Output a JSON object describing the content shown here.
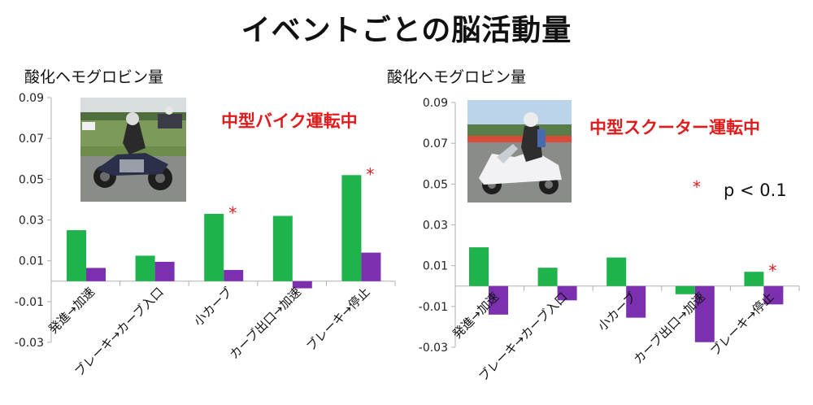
{
  "title": "イベントごとの脳活動量",
  "colors": {
    "series_a": "#1fb34c",
    "series_b": "#7b30b0",
    "accent": "#e01b1b",
    "axis": "#b0b0b0"
  },
  "legend_note": {
    "star": "*",
    "text": "p < 0.1"
  },
  "chart_data": [
    {
      "type": "bar",
      "title": "中型バイク運転中",
      "ylabel": "酸化ヘモグロビン量",
      "xlabel": "",
      "ylim": [
        -0.03,
        0.09
      ],
      "yticks": [
        "0.09",
        "0.07",
        "0.05",
        "0.03",
        "0.01",
        "-0.01",
        "-0.03"
      ],
      "categories": [
        "発進→加速",
        "ブレーキ→カーブ入口",
        "小カーブ",
        "カーブ出口→加速",
        "ブレーキ→停止"
      ],
      "series": [
        {
          "values": [
            0.025,
            0.0125,
            0.033,
            0.032,
            0.052
          ]
        },
        {
          "values": [
            0.0065,
            0.0095,
            0.0055,
            -0.0035,
            0.014
          ]
        }
      ],
      "annotations": [
        {
          "category": 2,
          "text": "*"
        },
        {
          "category": 4,
          "text": "*"
        }
      ],
      "photo": "motorcycle-rider-photo"
    },
    {
      "type": "bar",
      "title": "中型スクーター運転中",
      "ylabel": "酸化ヘモグロビン量",
      "xlabel": "",
      "ylim": [
        -0.03,
        0.09
      ],
      "yticks": [
        "0.09",
        "0.07",
        "0.05",
        "0.03",
        "0.01",
        "-0.01",
        "-0.03"
      ],
      "categories": [
        "発進→加速",
        "ブレーキ→カーブ入口",
        "小カーブ",
        "カーブ出口→加速",
        "ブレーキ→停止"
      ],
      "series": [
        {
          "values": [
            0.019,
            0.009,
            0.014,
            -0.004,
            0.007
          ]
        },
        {
          "values": [
            -0.014,
            -0.007,
            -0.0155,
            -0.0275,
            -0.009
          ]
        }
      ],
      "annotations": [
        {
          "category": 4,
          "text": "*"
        }
      ],
      "photo": "scooter-rider-photo"
    }
  ]
}
